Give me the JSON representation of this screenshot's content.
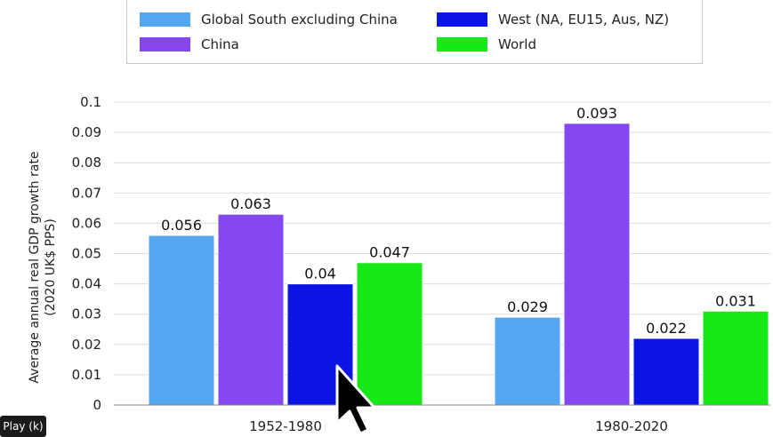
{
  "chart_data": {
    "type": "bar",
    "categories": [
      "1952-1980",
      "1980-2020"
    ],
    "series": [
      {
        "name": "Global South excluding China",
        "color": "#55a7f2",
        "values": [
          0.056,
          0.029
        ],
        "labels": [
          "0.056",
          "0.029"
        ]
      },
      {
        "name": "China",
        "color": "#8447f2",
        "values": [
          0.063,
          0.093
        ],
        "labels": [
          "0.063",
          "0.093"
        ]
      },
      {
        "name": "West (NA, EU15, Aus, NZ)",
        "color": "#0c14e4",
        "values": [
          0.04,
          0.022
        ],
        "labels": [
          "0.04",
          "0.022"
        ]
      },
      {
        "name": "World",
        "color": "#17e817",
        "values": [
          0.047,
          0.031
        ],
        "labels": [
          "0.047",
          "0.031"
        ]
      }
    ],
    "ylabel": "Average annual real GDP growth rate (2020 UK$ PPS)",
    "ylabel_lines": [
      "Average annual real GDP growth rate",
      "(2020 UK$ PPS)"
    ],
    "ylim": [
      0,
      0.1
    ],
    "yticks": [
      "0",
      "0.01",
      "0.02",
      "0.03",
      "0.04",
      "0.05",
      "0.06",
      "0.07",
      "0.08",
      "0.09",
      "0.1"
    ],
    "grid": true,
    "legend_position": "top"
  },
  "player": {
    "play_label": "Play (k)"
  }
}
